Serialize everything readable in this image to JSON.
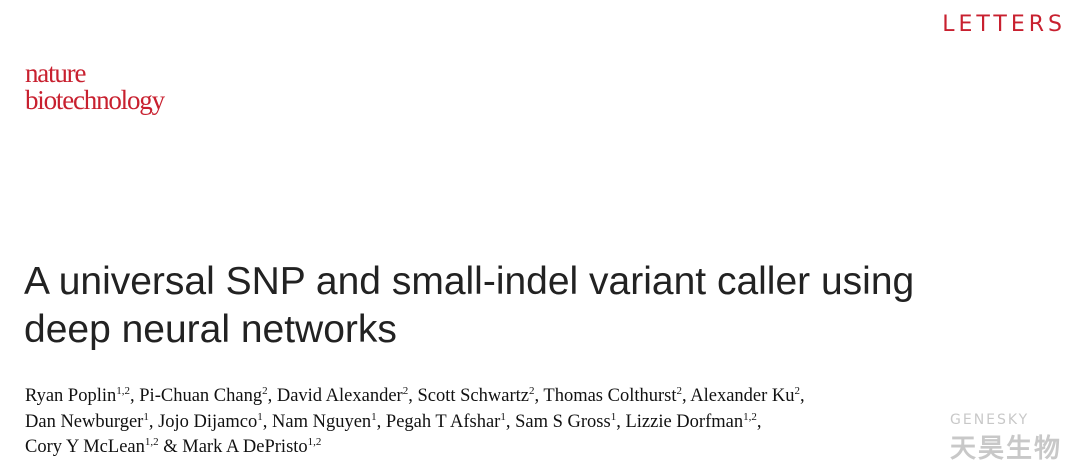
{
  "header": {
    "section": "LETTERS",
    "journal": [
      "nature",
      "biotechnology"
    ]
  },
  "title_lines": [
    "A universal SNP and small-indel variant caller using",
    "deep neural networks"
  ],
  "author_lines": [
    [
      {
        "name": "Ryan Poplin",
        "aff": "1,2",
        "sep": ","
      },
      {
        "name": "Pi-Chuan Chang",
        "aff": "2",
        "sep": ","
      },
      {
        "name": "David Alexander",
        "aff": "2",
        "sep": ","
      },
      {
        "name": "Scott Schwartz",
        "aff": "2",
        "sep": ","
      },
      {
        "name": "Thomas Colthurst",
        "aff": "2",
        "sep": ","
      },
      {
        "name": "Alexander Ku",
        "aff": "2",
        "sep": ","
      }
    ],
    [
      {
        "name": "Dan Newburger",
        "aff": "1",
        "sep": ","
      },
      {
        "name": "Jojo Dijamco",
        "aff": "1",
        "sep": ","
      },
      {
        "name": "Nam Nguyen",
        "aff": "1",
        "sep": ","
      },
      {
        "name": "Pegah T Afshar",
        "aff": "1",
        "sep": ","
      },
      {
        "name": "Sam S Gross",
        "aff": "1",
        "sep": ","
      },
      {
        "name": "Lizzie Dorfman",
        "aff": "1,2",
        "sep": ","
      }
    ],
    [
      {
        "name": "Cory Y McLean",
        "aff": "1,2",
        "sep": "&"
      },
      {
        "name": "Mark A DePristo",
        "aff": "1,2"
      }
    ]
  ],
  "watermark": {
    "latin": "GENESKY",
    "chinese": "天昊生物"
  }
}
